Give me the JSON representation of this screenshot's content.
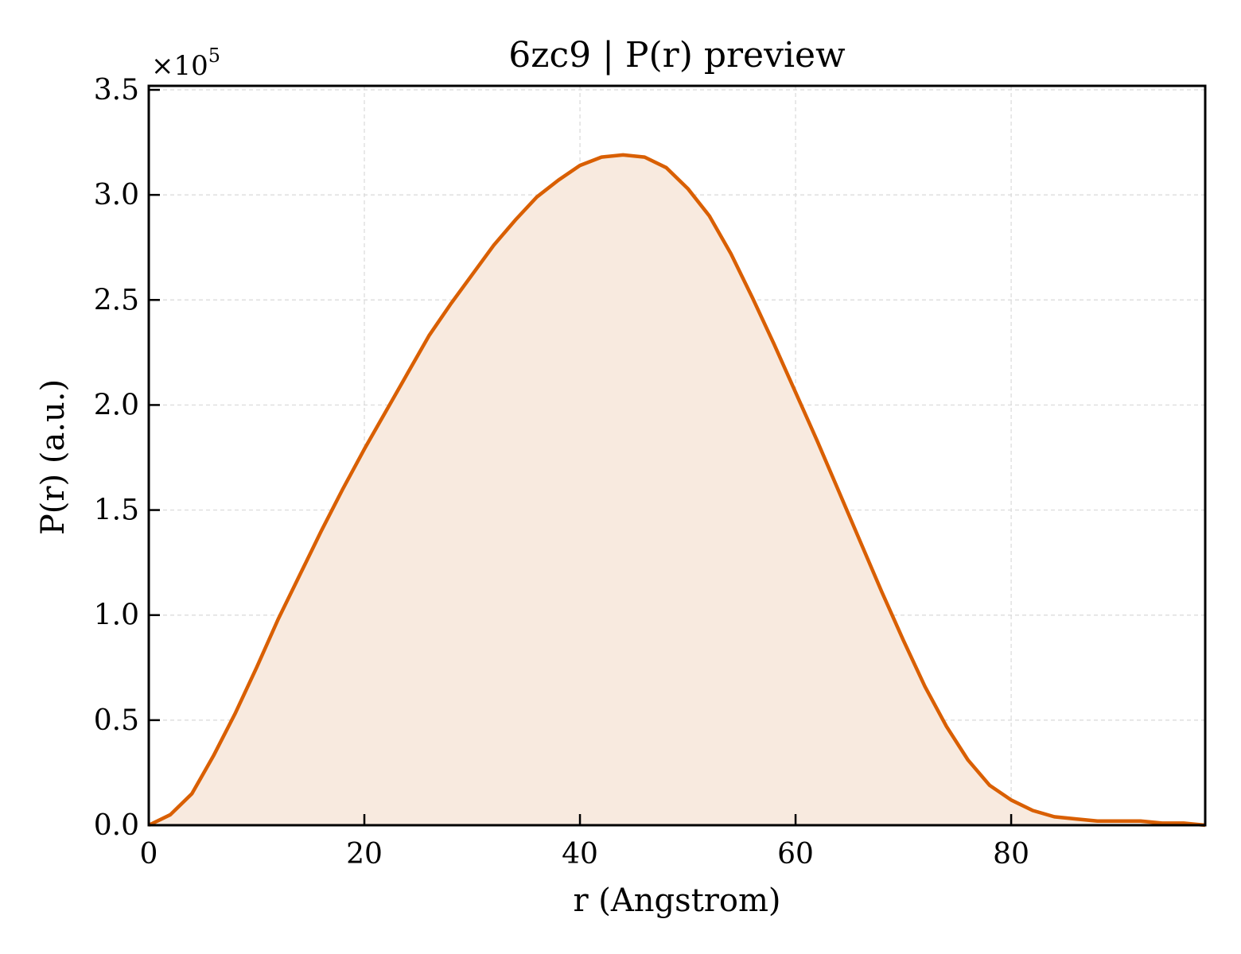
{
  "chart_data": {
    "type": "area",
    "title": "6zc9 | P(r) preview",
    "xlabel": "r (Angstrom)",
    "ylabel": "P(r) (a.u.)",
    "y_multiplier": {
      "prefix": "×10",
      "power": "5"
    },
    "xlim": [
      0,
      98
    ],
    "ylim": [
      0,
      3.5
    ],
    "x_ticks": [
      0,
      20,
      40,
      60,
      80
    ],
    "x_tick_labels": [
      "0",
      "20",
      "40",
      "60",
      "80"
    ],
    "y_ticks": [
      0.0,
      0.5,
      1.0,
      1.5,
      2.0,
      2.5,
      3.0,
      3.5
    ],
    "y_tick_labels": [
      "0.0",
      "0.5",
      "1.0",
      "1.5",
      "2.0",
      "2.5",
      "3.0",
      "3.5"
    ],
    "grid": true,
    "legend": "none",
    "line_color": "#d95f02",
    "fill_color": "#f8eadf",
    "series": [
      {
        "x": [
          0,
          2,
          4,
          6,
          8,
          10,
          12,
          14,
          16,
          18,
          20,
          22,
          24,
          26,
          28,
          30,
          32,
          34,
          36,
          38,
          40,
          42,
          44,
          46,
          48,
          50,
          52,
          54,
          56,
          58,
          60,
          62,
          64,
          66,
          68,
          70,
          72,
          74,
          76,
          78,
          80,
          82,
          84,
          86,
          88,
          90,
          92,
          94,
          96,
          98
        ],
        "y": [
          0.0,
          0.05,
          0.15,
          0.33,
          0.53,
          0.75,
          0.98,
          1.19,
          1.4,
          1.6,
          1.79,
          1.97,
          2.15,
          2.33,
          2.48,
          2.62,
          2.76,
          2.88,
          2.99,
          3.07,
          3.14,
          3.18,
          3.19,
          3.18,
          3.13,
          3.03,
          2.9,
          2.72,
          2.51,
          2.29,
          2.06,
          1.83,
          1.59,
          1.35,
          1.11,
          0.88,
          0.66,
          0.47,
          0.31,
          0.19,
          0.12,
          0.07,
          0.04,
          0.03,
          0.02,
          0.02,
          0.02,
          0.01,
          0.01,
          0.0
        ]
      }
    ]
  }
}
